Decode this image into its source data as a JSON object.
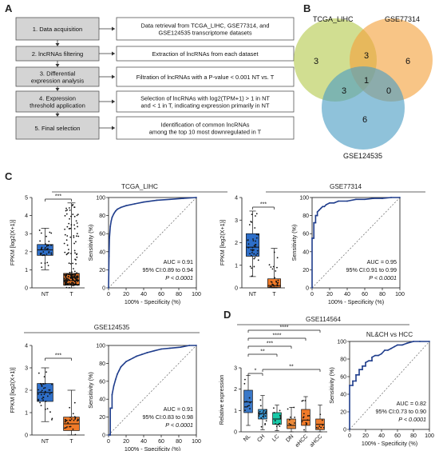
{
  "panels": {
    "A": "A",
    "B": "B",
    "C": "C",
    "D": "D"
  },
  "workflow": {
    "steps": [
      {
        "label": [
          "1. Data acquisition"
        ],
        "desc": [
          "Data retrieval from TCGA_LIHC, GSE77314, and",
          "GSE124535 transcriptome datasets"
        ]
      },
      {
        "label": [
          "2. lncRNAs filtering"
        ],
        "desc": [
          "Extraction of lncRNAs from each dataset"
        ]
      },
      {
        "label": [
          "3. Differential",
          "expression analysis"
        ],
        "desc": [
          "Filtration of lncRNAs with a P-value < 0.001 NT vs. T"
        ]
      },
      {
        "label": [
          "4. Expression",
          "threshold application"
        ],
        "desc": [
          "Selection of lncRNAs with log2(TPM+1) > 1 in NT",
          "and < 1 in T, indicating expression primarily in NT"
        ]
      },
      {
        "label": [
          "5. Final selection"
        ],
        "desc": [
          "Identification of common lncRNAs",
          "among the top 10 most downregulated in T"
        ]
      }
    ]
  },
  "venn": {
    "sets": [
      {
        "name": "TCGA_LIHC",
        "color": "#b5c94e"
      },
      {
        "name": "GSE77314",
        "color": "#f4a23c"
      },
      {
        "name": "GSE124535",
        "color": "#4a9cc4"
      }
    ],
    "regions": {
      "tcga_only": "3",
      "gse77_only": "6",
      "gse124_only": "6",
      "tcga_gse77": "3",
      "tcga_gse124": "3",
      "gse77_gse124": "0",
      "all": "1"
    }
  },
  "chart_data": [
    {
      "type": "box",
      "title": "TCGA_LIHC",
      "ylabel": "FPKM [log2(X+1)]",
      "categories": [
        "NT",
        "T"
      ],
      "ylim": [
        0,
        5
      ],
      "yticks": [
        "0",
        "1",
        "2",
        "3",
        "4",
        "5"
      ],
      "box": [
        {
          "q1": 1.8,
          "median": 2.1,
          "q3": 2.4,
          "min": 1.0,
          "max": 3.3
        },
        {
          "q1": 0.15,
          "median": 0.4,
          "q3": 0.8,
          "min": 0.0,
          "max": 4.7
        }
      ],
      "significance": "***"
    },
    {
      "type": "line",
      "title": "",
      "xlabel": "100% - Specificity (%)",
      "ylabel": "Sensitivity (%)",
      "xticks": [
        "0",
        "20",
        "40",
        "60",
        "80",
        "100"
      ],
      "yticks": [
        "0",
        "20",
        "40",
        "60",
        "80",
        "100"
      ],
      "x": [
        0,
        0.5,
        1,
        2,
        3,
        4,
        6,
        8,
        10,
        14,
        20,
        30,
        40,
        55,
        70,
        85,
        100
      ],
      "y": [
        0,
        35,
        55,
        68,
        74,
        78,
        82,
        85,
        87,
        89,
        91,
        93,
        95,
        97,
        98,
        99,
        100
      ],
      "auc": "AUC = 0.91",
      "ci": "95% CI:0.89 to 0.94",
      "p": "P < 0.0001"
    },
    {
      "type": "box",
      "title": "GSE77314",
      "ylabel": "FPKM [log2(X+1)]",
      "categories": [
        "NT",
        "T"
      ],
      "ylim": [
        0,
        4
      ],
      "yticks": [
        "0",
        "1",
        "2",
        "3",
        "4"
      ],
      "box": [
        {
          "q1": 1.4,
          "median": 1.8,
          "q3": 2.4,
          "min": 0.5,
          "max": 3.4
        },
        {
          "q1": 0.03,
          "median": 0.1,
          "q3": 0.4,
          "min": 0.0,
          "max": 1.75
        }
      ],
      "significance": "***"
    },
    {
      "type": "line",
      "title": "",
      "xlabel": "100% - Specificity (%)",
      "ylabel": "Sensitivity (%)",
      "xticks": [
        "0",
        "20",
        "40",
        "60",
        "80",
        "100"
      ],
      "yticks": [
        "0",
        "20",
        "40",
        "60",
        "80",
        "100"
      ],
      "x": [
        0,
        0,
        2,
        2,
        4,
        4,
        6,
        6,
        8,
        10,
        12,
        14,
        16,
        20,
        25,
        30,
        40,
        50,
        60,
        70,
        80,
        90,
        100
      ],
      "y": [
        0,
        55,
        55,
        72,
        72,
        80,
        80,
        84,
        86,
        88,
        90,
        90,
        92,
        94,
        94,
        96,
        96,
        98,
        98,
        99,
        99,
        100,
        100
      ],
      "auc": "AUC = 0.95",
      "ci": "95% CI:0.91 to 0.99",
      "p": "P < 0.0001"
    },
    {
      "type": "box",
      "title": "GSE124535",
      "ylabel": "FPKM [log2(X+1)]",
      "categories": [
        "NT",
        "T"
      ],
      "ylim": [
        0,
        4
      ],
      "yticks": [
        "0",
        "1",
        "2",
        "3",
        "4"
      ],
      "box": [
        {
          "q1": 1.5,
          "median": 1.9,
          "q3": 2.3,
          "min": 0.6,
          "max": 3.0
        },
        {
          "q1": 0.2,
          "median": 0.5,
          "q3": 0.8,
          "min": 0.0,
          "max": 2.0
        }
      ],
      "significance": "***"
    },
    {
      "type": "line",
      "title": "",
      "xlabel": "100% - Specificity (%)",
      "ylabel": "Sensitivity (%)",
      "xticks": [
        "0",
        "20",
        "40",
        "60",
        "80",
        "100"
      ],
      "yticks": [
        "0",
        "20",
        "40",
        "60",
        "80",
        "100"
      ],
      "x": [
        0,
        2,
        2,
        4,
        4,
        6,
        8,
        10,
        12,
        14,
        16,
        18,
        20,
        24,
        28,
        32,
        38,
        44,
        52,
        60,
        70,
        82,
        92,
        100
      ],
      "y": [
        0,
        0,
        30,
        30,
        45,
        55,
        62,
        68,
        72,
        76,
        78,
        80,
        82,
        84,
        86,
        88,
        90,
        92,
        94,
        96,
        97,
        98,
        100,
        100
      ],
      "auc": "AUC = 0.91",
      "ci": "95% CI:0.83 to 0.98",
      "p": "P < 0.0001"
    },
    {
      "type": "box",
      "title": "GSE114564",
      "ylabel": "Relative expression",
      "categories": [
        "NL",
        "CH",
        "LC",
        "DN",
        "eHCC",
        "aHCC"
      ],
      "ylim": [
        0,
        3
      ],
      "yticks": [
        "0",
        "1",
        "2",
        "3"
      ],
      "colors": [
        "#3a78c8",
        "#3a9ad8",
        "#17c9a8",
        "#ec8a3a",
        "#f07a28",
        "#ef7d2d"
      ],
      "box": [
        {
          "q1": 0.9,
          "median": 1.4,
          "q3": 1.95,
          "min": 0.3,
          "max": 2.65
        },
        {
          "q1": 0.6,
          "median": 0.85,
          "q3": 1.05,
          "min": 0.1,
          "max": 1.7
        },
        {
          "q1": 0.35,
          "median": 0.6,
          "q3": 0.9,
          "min": 0.05,
          "max": 1.25
        },
        {
          "q1": 0.15,
          "median": 0.3,
          "q3": 0.6,
          "min": 0.0,
          "max": 1.15
        },
        {
          "q1": 0.3,
          "median": 0.55,
          "q3": 1.05,
          "min": 0.0,
          "max": 1.65
        },
        {
          "q1": 0.1,
          "median": 0.35,
          "q3": 0.6,
          "min": 0.0,
          "max": 1.25
        }
      ],
      "significance_brackets": [
        {
          "from": "NL",
          "to": "aHCC",
          "label": "****"
        },
        {
          "from": "NL",
          "to": "eHCC",
          "label": "****"
        },
        {
          "from": "NL",
          "to": "DN",
          "label": "***"
        },
        {
          "from": "NL",
          "to": "LC",
          "label": "**"
        },
        {
          "from": "NL",
          "to": "CH",
          "label": "*"
        },
        {
          "from": "CH",
          "to": "aHCC",
          "label": "**"
        }
      ]
    },
    {
      "type": "line",
      "title": "NL&CH vs HCC",
      "xlabel": "100% - Specificity (%)",
      "ylabel": "Sensitivity (%)",
      "xticks": [
        "0",
        "20",
        "40",
        "60",
        "80",
        "100"
      ],
      "yticks": [
        "0",
        "20",
        "40",
        "60",
        "80",
        "100"
      ],
      "x": [
        0,
        0,
        4,
        4,
        8,
        8,
        12,
        12,
        16,
        16,
        20,
        20,
        24,
        28,
        28,
        32,
        36,
        40,
        44,
        48,
        52,
        56,
        60,
        66,
        72,
        80,
        88,
        100
      ],
      "y": [
        0,
        50,
        50,
        55,
        55,
        62,
        62,
        68,
        68,
        72,
        72,
        76,
        78,
        78,
        82,
        84,
        84,
        86,
        90,
        90,
        92,
        94,
        96,
        96,
        98,
        100,
        100,
        100
      ],
      "auc": "AUC = 0.82",
      "ci": "95% CI:0.73 to 0.90",
      "p": "P < 0.0001"
    }
  ]
}
